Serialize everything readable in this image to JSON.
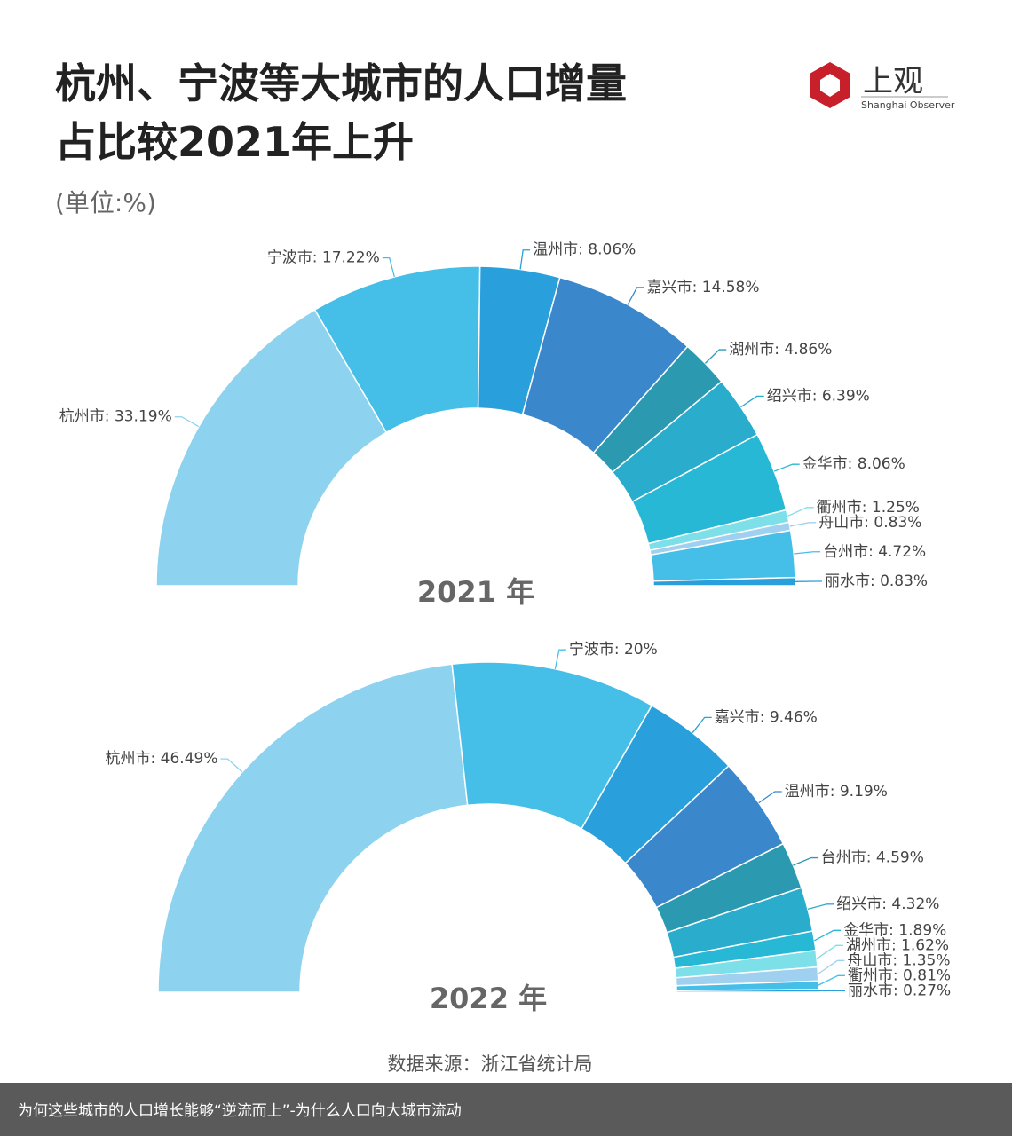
{
  "title": [
    "杭州、宁波等大城市的人口增量",
    "占比较2021年上升"
  ],
  "subtitle": "(单位:%)",
  "logo": {
    "name": "上观",
    "subname": "Shanghai Observer"
  },
  "source": "数据来源：浙江省统计局",
  "caption": "为何这些城市的人口增长能够“逆流而上”-为什么人口向大城市流动",
  "chart_data": [
    {
      "type": "pie",
      "title": "2021 年",
      "categories": [
        "杭州市",
        "宁波市",
        "温州市",
        "嘉兴市",
        "湖州市",
        "绍兴市",
        "金华市",
        "衢州市",
        "舟山市",
        "台州市",
        "丽水市"
      ],
      "values": [
        33.19,
        17.22,
        8.06,
        14.58,
        4.86,
        6.39,
        8.06,
        1.25,
        0.83,
        4.72,
        0.83
      ],
      "value_labels": [
        ": 33.19%",
        ": 17.22%",
        ": 8.06%",
        ": 14.58%",
        ": 4.86%",
        ": 6.39%",
        ": 8.06%",
        ": 1.25%",
        ": 0.83%",
        ": 4.72%",
        ": 0.83%"
      ],
      "colors": [
        "#8dd3f0",
        "#45bfe8",
        "#29a0dc",
        "#3a87cc",
        "#2b9ab0",
        "#2aaccc",
        "#27b8d6",
        "#7ddfe8",
        "#a0d0f0",
        "#45bfe8",
        "#29a0dc"
      ]
    },
    {
      "type": "pie",
      "title": "2022 年",
      "categories": [
        "杭州市",
        "宁波市",
        "嘉兴市",
        "温州市",
        "台州市",
        "绍兴市",
        "金华市",
        "湖州市",
        "舟山市",
        "衢州市",
        "丽水市"
      ],
      "values": [
        46.49,
        20,
        9.46,
        9.19,
        4.59,
        4.32,
        1.89,
        1.62,
        1.35,
        0.81,
        0.27
      ],
      "value_labels": [
        ": 46.49%",
        ": 20%",
        ": 9.46%",
        ": 9.19%",
        ": 4.59%",
        ": 4.32%",
        ": 1.89%",
        ": 1.62%",
        ": 1.35%",
        ": 0.81%",
        ": 0.27%"
      ],
      "colors": [
        "#8dd3f0",
        "#45bfe8",
        "#29a0dc",
        "#3a87cc",
        "#2b9ab0",
        "#2aaccc",
        "#27b8d6",
        "#7ddfe8",
        "#a0d0f0",
        "#45bfe8",
        "#29a0dc"
      ]
    }
  ]
}
